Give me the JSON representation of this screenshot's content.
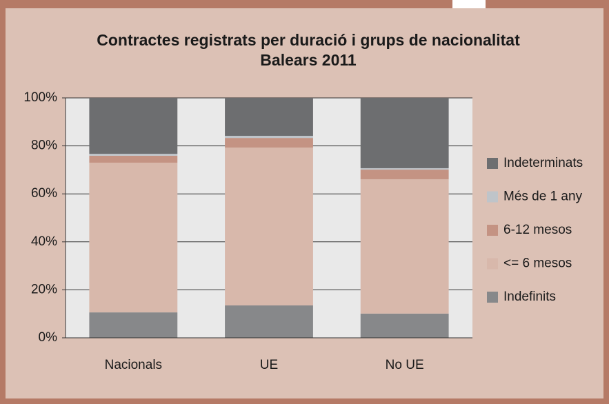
{
  "chart_data": {
    "type": "stacked-bar",
    "title": "Contractes registrats per duració i grups de nacionalitat",
    "subtitle": "Balears 2011",
    "categories": [
      "Nacionals",
      "UE",
      "No UE"
    ],
    "series": [
      {
        "name": "Indefinits",
        "color": "#87888a",
        "values": [
          10.6,
          13.5,
          10.1
        ]
      },
      {
        "name": "<= 6 mesos",
        "color": "#d8b8ab",
        "values": [
          62.4,
          65.8,
          56.0
        ]
      },
      {
        "name": "6-12 mesos",
        "color": "#c49383",
        "values": [
          2.9,
          4.0,
          4.0
        ]
      },
      {
        "name": "Més de 1 any",
        "color": "#bfc4c9",
        "values": [
          0.8,
          0.9,
          0.6
        ]
      },
      {
        "name": "Indeterminats",
        "color": "#6d6e70",
        "values": [
          23.3,
          15.8,
          29.3
        ]
      }
    ],
    "ylim": [
      0,
      100
    ],
    "yticks": [
      {
        "value": 0,
        "label": "0%"
      },
      {
        "value": 20,
        "label": "20%"
      },
      {
        "value": 40,
        "label": "40%"
      },
      {
        "value": 60,
        "label": "60%"
      },
      {
        "value": 80,
        "label": "80%"
      },
      {
        "value": 100,
        "label": "100%"
      }
    ],
    "grid": true,
    "legend": "right"
  }
}
